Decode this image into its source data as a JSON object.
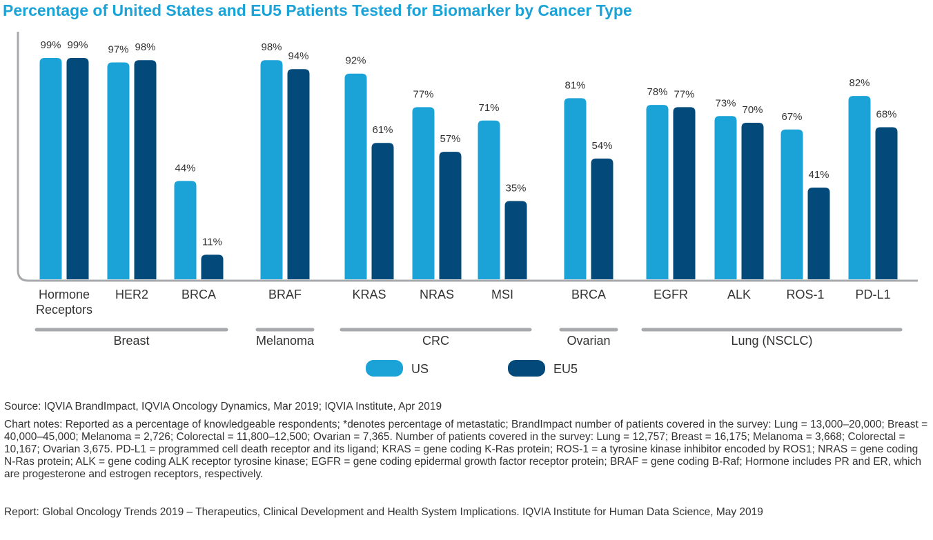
{
  "chart_data": {
    "type": "bar",
    "title": "Percentage of United States and EU5 Patients Tested for Biomarker by Cancer Type",
    "xlabel": "",
    "ylabel": "",
    "ylim": [
      0,
      100
    ],
    "grid": false,
    "legend_position": "bottom-center",
    "categories": [
      [
        "Hormone",
        "Receptors"
      ],
      [
        "HER2"
      ],
      [
        "BRCA"
      ],
      [
        "BRAF"
      ],
      [
        "KRAS"
      ],
      [
        "NRAS"
      ],
      [
        "MSI"
      ],
      [
        "BRCA"
      ],
      [
        "EGFR"
      ],
      [
        "ALK"
      ],
      [
        "ROS-1"
      ],
      [
        "PD-L1"
      ]
    ],
    "groups": [
      {
        "label": "Breast",
        "start": 0,
        "end": 2
      },
      {
        "label": "Melanoma",
        "start": 3,
        "end": 3
      },
      {
        "label": "CRC",
        "start": 4,
        "end": 6
      },
      {
        "label": "Ovarian",
        "start": 7,
        "end": 7
      },
      {
        "label": "Lung (NSCLC)",
        "start": 8,
        "end": 11
      }
    ],
    "series": [
      {
        "name": "US",
        "color": "#1ba3d8",
        "values": [
          99,
          97,
          44,
          98,
          92,
          77,
          71,
          81,
          78,
          73,
          67,
          82
        ]
      },
      {
        "name": "EU5",
        "color": "#034a7b",
        "values": [
          99,
          98,
          11,
          94,
          61,
          57,
          35,
          54,
          77,
          70,
          41,
          68
        ]
      }
    ],
    "value_suffix": "%"
  },
  "footer": {
    "source": "Source: IQVIA BrandImpact, IQVIA Oncology Dynamics, Mar 2019; IQVIA Institute, Apr 2019",
    "chart_notes": "Chart notes: Reported as a percentage of knowledgeable respondents; *denotes percentage of metastatic; BrandImpact number of patients covered in the survey: Lung = 13,000–20,000; Breast = 40,000–45,000; Melanoma = 2,726; Colorectal = 11,800–12,500; Ovarian = 7,365. Number of patients covered in the survey: Lung = 12,757; Breast = 16,175; Melanoma = 3,668; Colorectal = 10,167; Ovarian 3,675. PD-L1 = programmed cell death receptor and its ligand; KRAS = gene coding K-Ras protein; ROS-1 = a tyrosine kinase inhibitor encoded by ROS1; NRAS = gene coding N-Ras protein; ALK = gene coding ALK receptor tyrosine kinase; EGFR = gene coding epidermal growth factor receptor protein; BRAF = gene coding B-Raf; Hormone includes PR and ER, which are progesterone and estrogen receptors, respectively.",
    "report": "Report: Global Oncology Trends 2019 – Therapeutics, Clinical Development and Health System Implications. IQVIA Institute for Human Data Science, May 2019"
  },
  "colors": {
    "title": "#1ba3d8",
    "axis": "#a7a9ac",
    "text": "#333333"
  }
}
